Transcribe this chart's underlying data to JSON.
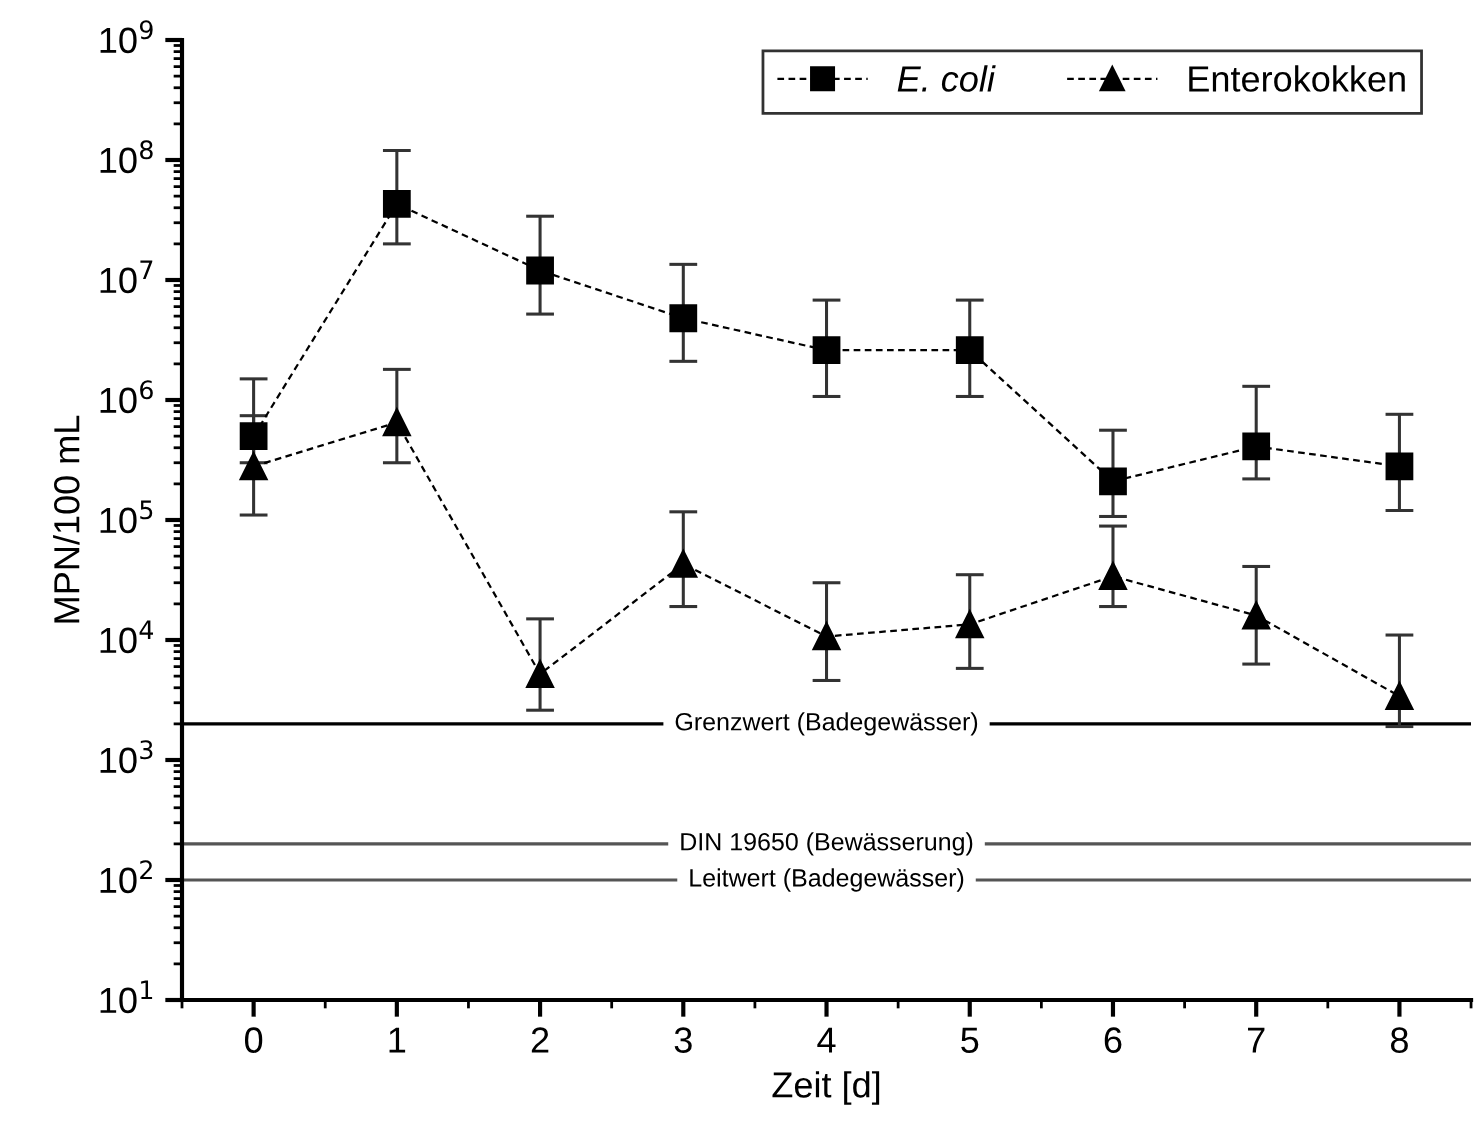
{
  "chart_data": {
    "type": "line",
    "xlabel": "Zeit [d]",
    "ylabel": "MPN/100 mL",
    "x": [
      0,
      1,
      2,
      3,
      4,
      5,
      6,
      7,
      8
    ],
    "series": [
      {
        "name": "E. coli",
        "color": "#000000",
        "marker": "square",
        "values": [
          500000,
          43000000,
          12000000,
          4800000,
          2600000,
          2600000,
          210000,
          410000,
          280000
        ],
        "errors": [
          [
            300000,
            1500000
          ],
          [
            20000000,
            120000000
          ],
          [
            5200000,
            34000000
          ],
          [
            2100000,
            13500000
          ],
          [
            1070000,
            6800000
          ],
          [
            1070000,
            6800000
          ],
          [
            107000,
            560000
          ],
          [
            220000,
            1300000
          ],
          [
            120000,
            760000
          ]
        ]
      },
      {
        "name": "Enterokokken",
        "color": "#000000",
        "marker": "triangle",
        "values": [
          280000,
          650000,
          5200,
          43000,
          10700,
          13500,
          34000,
          16000,
          3400
        ],
        "errors": [
          [
            110000,
            740000
          ],
          [
            300000,
            1800000
          ],
          [
            2600,
            15000
          ],
          [
            19000,
            117000
          ],
          [
            4600,
            30000
          ],
          [
            5800,
            35000
          ],
          [
            19000,
            89000
          ],
          [
            6300,
            41000
          ],
          [
            1900,
            11000
          ]
        ]
      }
    ],
    "line_style": "dashed",
    "log": "y",
    "xlim": [
      -0.5,
      8.5
    ],
    "xticks": [
      0,
      1,
      2,
      3,
      4,
      5,
      6,
      7,
      8
    ],
    "ylim": [
      10,
      1000000000
    ],
    "yticks": [
      {
        "value": 10,
        "label": "10$^{1}$"
      },
      {
        "value": 100,
        "label": "10$^{2}$"
      },
      {
        "value": 1000,
        "label": "10$^{3}$"
      },
      {
        "value": 10000,
        "label": "10$^{4}$"
      },
      {
        "value": 100000,
        "label": "10$^{5}$"
      },
      {
        "value": 1000000,
        "label": "10$^{6}$"
      },
      {
        "value": 10000000,
        "label": "10$^{7}$"
      },
      {
        "value": 100000000,
        "label": "10$^{8}$"
      },
      {
        "value": 1000000000,
        "label": "10$^{9}$"
      }
    ],
    "ref_lines": [
      {
        "axis": "y",
        "value": 2000,
        "label": "Grenzwert (Badegewässer)",
        "color": "#000000"
      },
      {
        "axis": "y",
        "value": 200,
        "label": "DIN 19650 (Bewässerung)",
        "color": "#555555"
      },
      {
        "axis": "y",
        "value": 100,
        "label": "Leitwert (Badegewässer)",
        "color": "#555555"
      }
    ],
    "legend": "top right",
    "grid": false
  }
}
